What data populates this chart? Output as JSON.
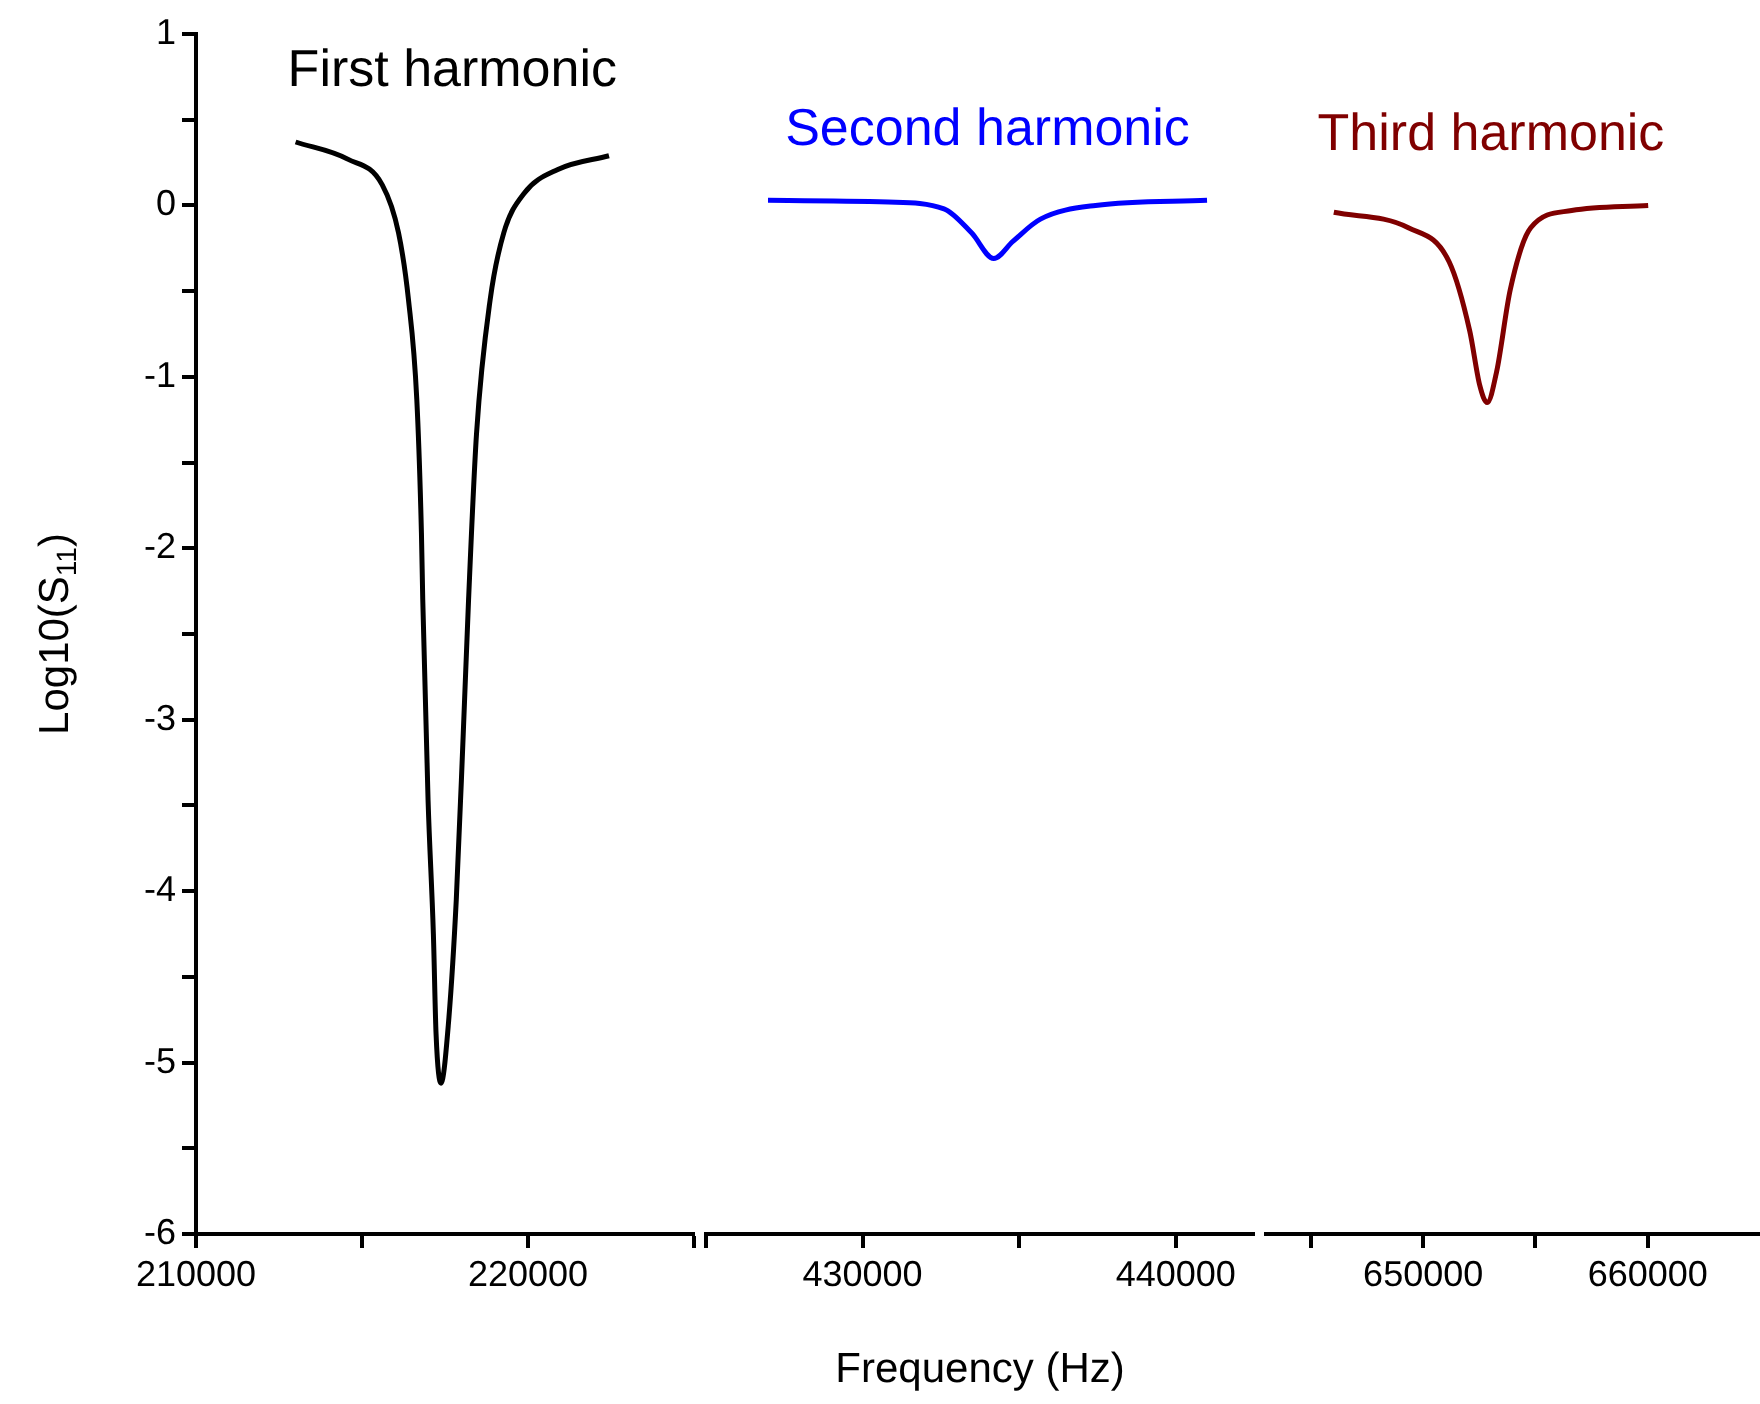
{
  "chart_data": [
    {
      "type": "line",
      "ylabel": "Log10(S$_{11}$)",
      "xlim": [
        210000,
        225000
      ],
      "xticks": [
        210000,
        {
          "value": 215000,
          "label": null
        },
        220000,
        {
          "value": 225000,
          "label": null
        }
      ],
      "ylim": [
        -6,
        1
      ],
      "yticks": [
        -6,
        {
          "value": -5.5,
          "label": null
        },
        -5,
        {
          "value": -4.5,
          "label": null
        },
        -4,
        {
          "value": -3.5,
          "label": null
        },
        -3,
        {
          "value": -2.5,
          "label": null
        },
        -2,
        {
          "value": -1.5,
          "label": null
        },
        -1,
        {
          "value": -0.5,
          "label": null
        },
        0,
        {
          "value": 0.5,
          "label": null
        },
        1
      ],
      "grid": false,
      "legend": false,
      "series": [
        {
          "name": "First harmonic",
          "color": "#000000",
          "x": [
            213000,
            214570,
            215610,
            216100,
            216400,
            216650,
            216790,
            216830,
            216990,
            217150,
            217230,
            217380,
            217600,
            217840,
            218050,
            218210,
            218450,
            218860,
            219270,
            219880,
            220900,
            222440
          ],
          "values": [
            0.37,
            0.27,
            0.12,
            -0.16,
            -0.55,
            -1.13,
            -1.91,
            -2.3,
            -3.47,
            -4.25,
            -4.83,
            -5.12,
            -4.78,
            -4.05,
            -3.08,
            -2.3,
            -1.33,
            -0.55,
            -0.16,
            0.07,
            0.21,
            0.29
          ]
        }
      ]
    },
    {
      "type": "line",
      "xlabel": "Frequency (Hz)",
      "xlim": [
        425000,
        442500
      ],
      "xticks": [
        {
          "value": 425000,
          "label": null
        },
        430000,
        {
          "value": 435000,
          "label": null
        },
        440000
      ],
      "ylim": [
        -6,
        1
      ],
      "tick_labels": "x",
      "grid": false,
      "legend": false,
      "series": [
        {
          "name": "Second harmonic",
          "color": "#0000ff",
          "x": [
            426980,
            430820,
            432600,
            433480,
            434190,
            434800,
            435680,
            437440,
            441000
          ],
          "values": [
            0.03,
            0.02,
            -0.02,
            -0.16,
            -0.31,
            -0.21,
            -0.08,
            0.0,
            0.03
          ]
        }
      ]
    },
    {
      "type": "line",
      "xlim": [
        643000,
        665000
      ],
      "xticks": [
        {
          "value": 645000,
          "label": null
        },
        650000,
        {
          "value": 655000,
          "label": null
        },
        660000
      ],
      "ylim": [
        -6,
        1
      ],
      "tick_labels": "x",
      "grid": false,
      "legend": false,
      "series": [
        {
          "name": "Third harmonic",
          "color": "#800000",
          "x": [
            646020,
            649340,
            651160,
            652070,
            652520,
            652850,
            653270,
            653880,
            654790,
            656610,
            660020
          ],
          "values": [
            -0.04,
            -0.13,
            -0.33,
            -0.73,
            -1.05,
            -1.15,
            -0.97,
            -0.49,
            -0.13,
            -0.03,
            0.0
          ]
        }
      ]
    }
  ]
}
